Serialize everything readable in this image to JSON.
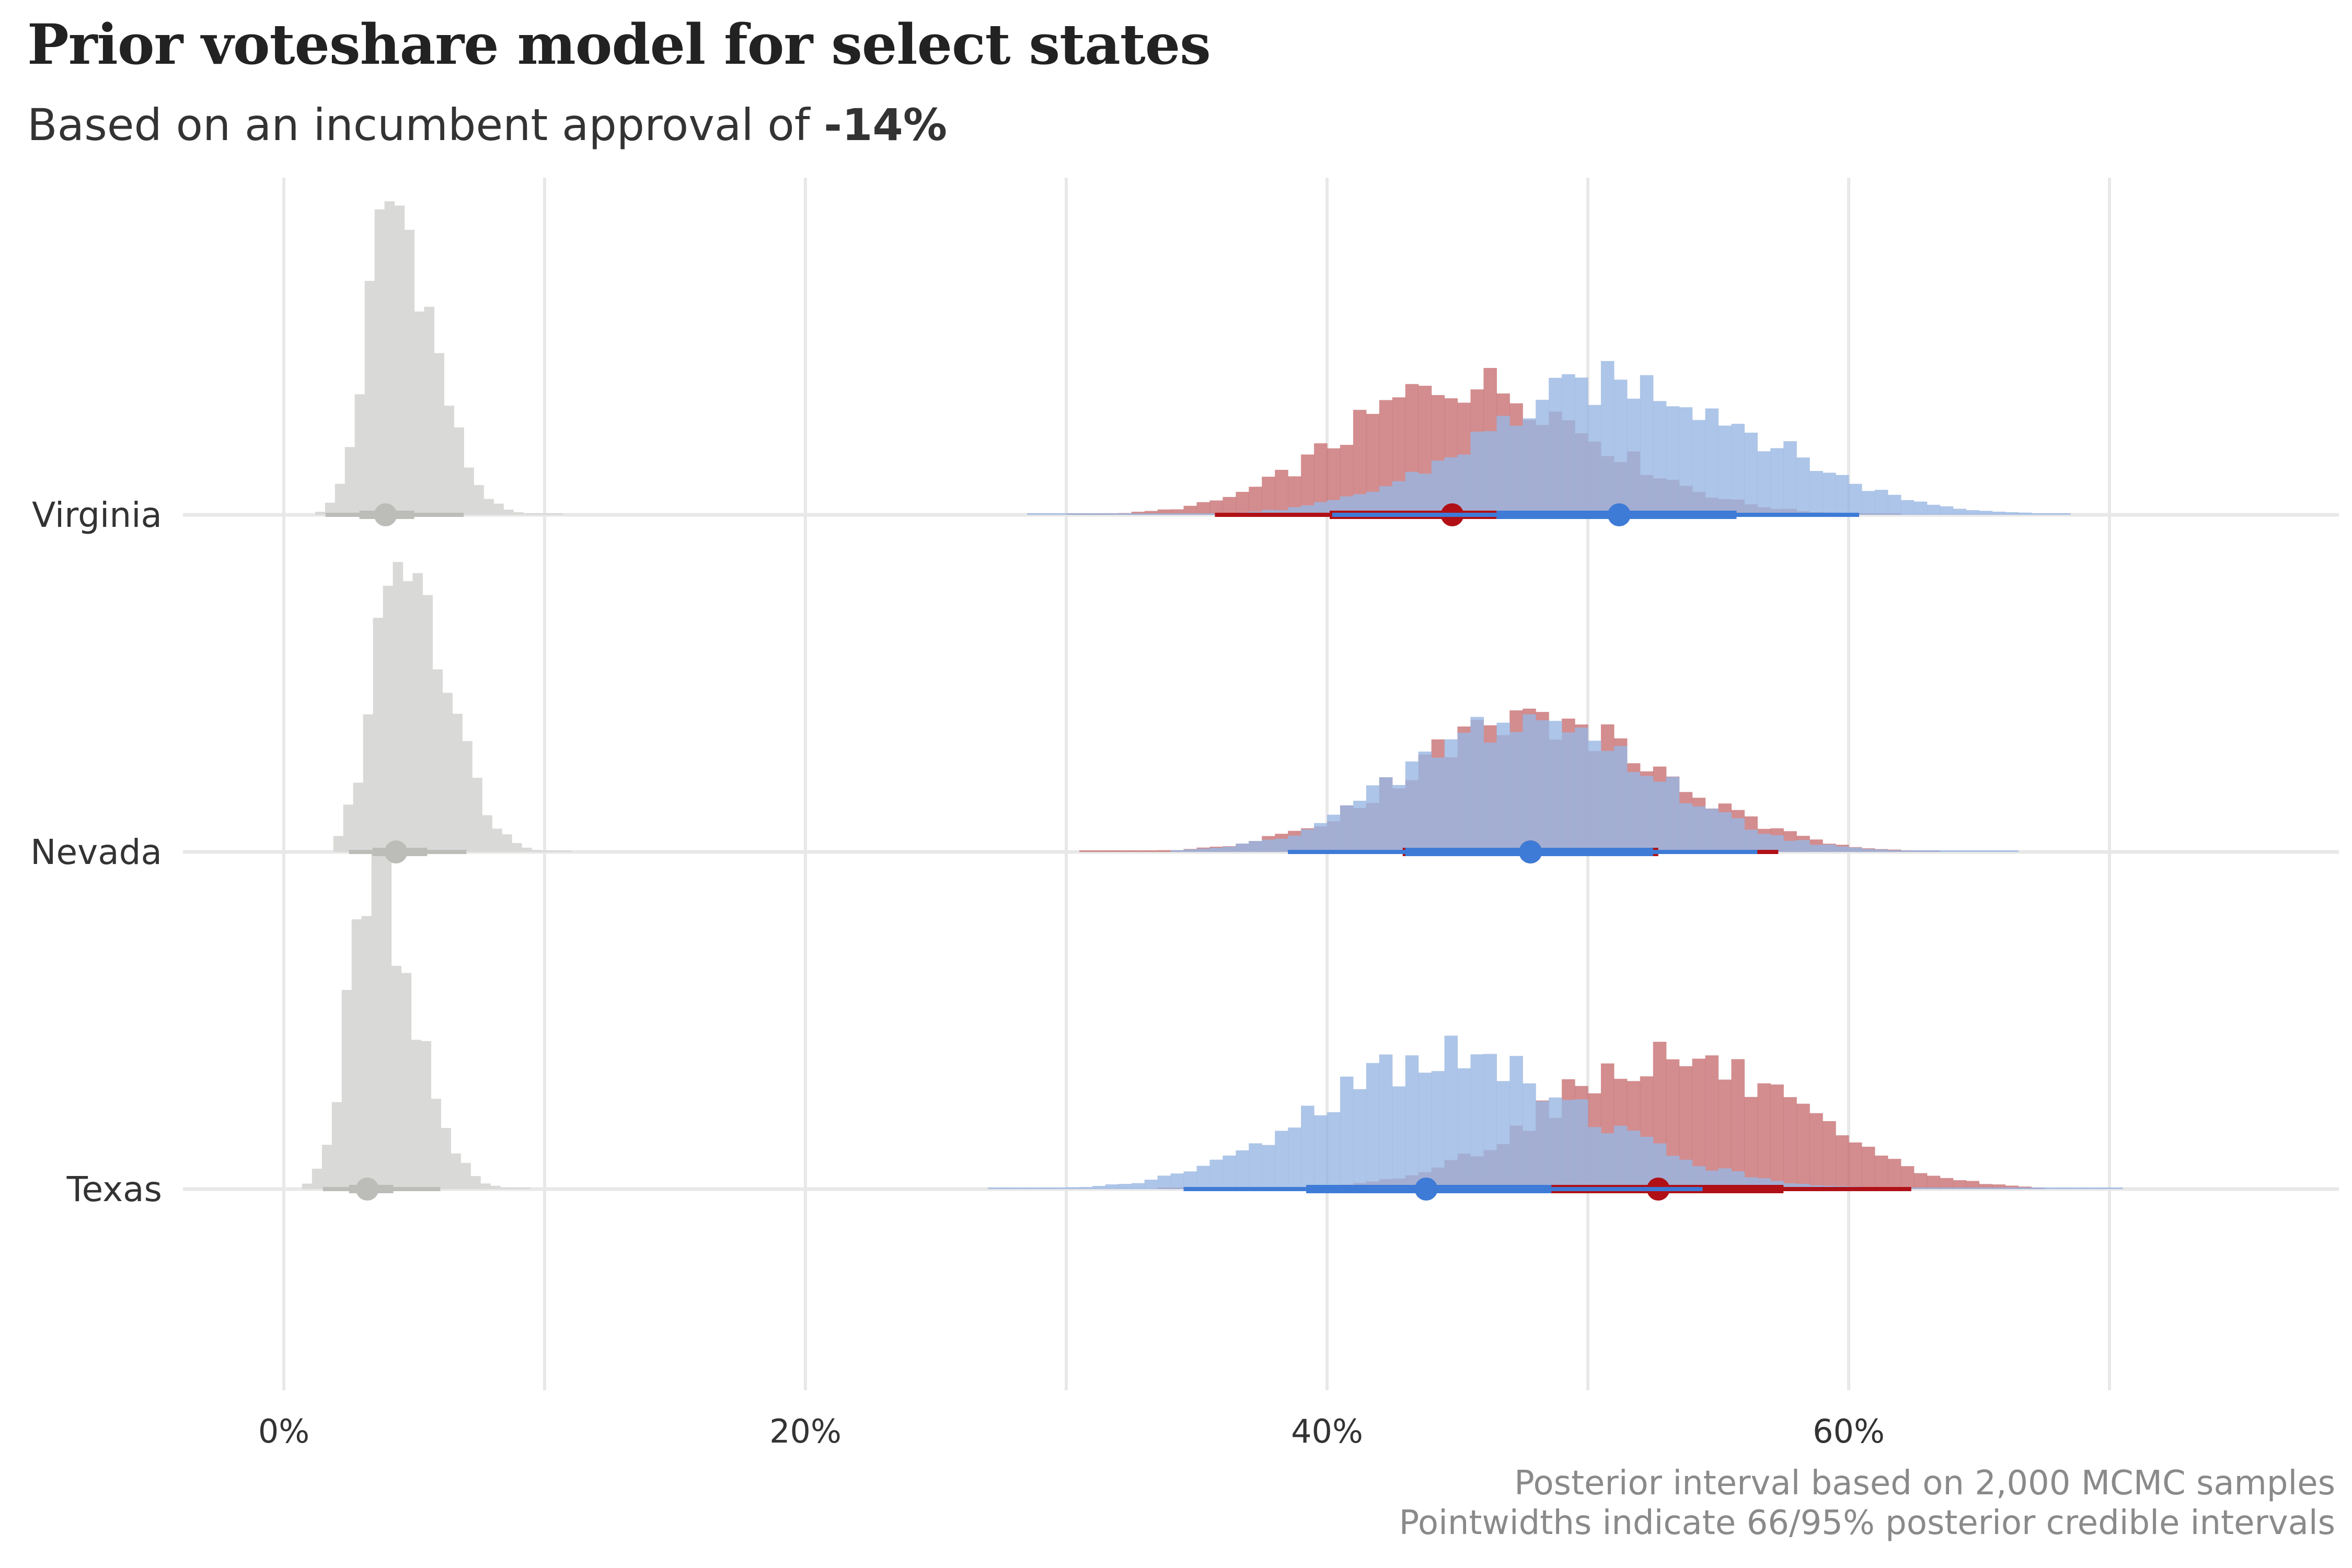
{
  "title": "Prior voteshare model for select states",
  "subtitle": {
    "prefix": "Based on an incumbent approval of ",
    "value": "-14%"
  },
  "caption": [
    "Posterior interval based on 2,000 MCMC samples",
    "Pointwidths indicate 66/95% posterior credible intervals"
  ],
  "colors": {
    "dem": "#3d7bd6",
    "rep": "#b01016",
    "other": "#bcbcb9",
    "dem_fill": "#99b6e2",
    "rep_fill": "#c87173",
    "other_fill": "#d9d9d7",
    "grid": "#e8e8e8"
  },
  "chart_data": {
    "type": "histogram-interval",
    "title": "Prior voteshare model for select states",
    "xlabel": "",
    "ylabel": "",
    "xlim": [
      -4,
      79
    ],
    "x_ticks": [
      0,
      20,
      40,
      60
    ],
    "x_tick_labels": [
      "0%",
      "20%",
      "40%",
      "60%"
    ],
    "x_minor_gridlines": [
      10,
      30,
      50,
      70
    ],
    "grid": true,
    "legend": "none",
    "states": [
      {
        "name": "Virginia",
        "series": [
          {
            "party": "other",
            "median": 3.9,
            "ci66": [
              2.9,
              5.0
            ],
            "ci95": [
              1.6,
              6.9
            ],
            "hist": {
              "min": 1.2,
              "max": 10.6,
              "mean": 4.1,
              "sd": 1.1,
              "skew": 1.2
            }
          },
          {
            "party": "rep",
            "median": 44.8,
            "ci66": [
              40.1,
              46.5
            ],
            "ci95": [
              35.7,
              55.5
            ],
            "hist": {
              "min": 30.0,
              "max": 62.0,
              "mean": 45.2,
              "sd": 4.6,
              "skew": 0.2
            }
          },
          {
            "party": "dem",
            "median": 51.2,
            "ci66": [
              46.5,
              55.7
            ],
            "ci95": [
              40.2,
              60.4
            ],
            "hist": {
              "min": 28.5,
              "max": 68.5,
              "mean": 51.2,
              "sd": 5.2,
              "skew": 0.1
            }
          }
        ]
      },
      {
        "name": "Nevada",
        "series": [
          {
            "party": "other",
            "median": 4.3,
            "ci66": [
              3.4,
              5.5
            ],
            "ci95": [
              2.5,
              7.0
            ],
            "hist": {
              "min": 1.9,
              "max": 10.8,
              "mean": 4.5,
              "sd": 1.2,
              "skew": 1.1
            }
          },
          {
            "party": "rep",
            "median": 47.8,
            "ci66": [
              42.9,
              52.7
            ],
            "ci95": [
              38.6,
              57.3
            ],
            "hist": {
              "min": 30.5,
              "max": 63.5,
              "mean": 47.8,
              "sd": 4.8,
              "skew": 0.1
            }
          },
          {
            "party": "dem",
            "median": 47.8,
            "ci66": [
              43.0,
              52.5
            ],
            "ci95": [
              38.5,
              56.5
            ],
            "hist": {
              "min": 34.0,
              "max": 66.5,
              "mean": 47.6,
              "sd": 4.6,
              "skew": 0.1
            }
          }
        ]
      },
      {
        "name": "Texas",
        "series": [
          {
            "party": "other",
            "median": 3.2,
            "ci66": [
              2.5,
              4.2
            ],
            "ci95": [
              1.5,
              6.0
            ],
            "hist": {
              "min": 0.7,
              "max": 9.4,
              "mean": 3.4,
              "sd": 1.1,
              "skew": 1.2
            }
          },
          {
            "party": "rep",
            "median": 52.7,
            "ci66": [
              48.4,
              57.5
            ],
            "ci95": [
              44.0,
              62.4
            ],
            "hist": {
              "min": 33.5,
              "max": 67.5,
              "mean": 53.0,
              "sd": 4.7,
              "skew": 0.1
            }
          },
          {
            "party": "dem",
            "median": 43.8,
            "ci66": [
              39.2,
              48.6
            ],
            "ci95": [
              34.5,
              54.4
            ],
            "hist": {
              "min": 27.0,
              "max": 70.5,
              "mean": 44.3,
              "sd": 5.0,
              "skew": 0.3
            }
          }
        ]
      }
    ]
  }
}
